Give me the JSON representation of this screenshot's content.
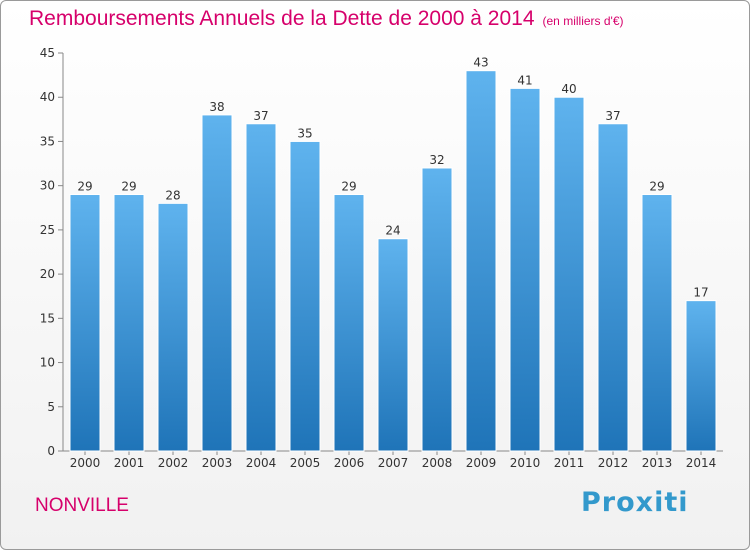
{
  "chart_data": {
    "type": "bar",
    "title": "Remboursements Annuels de la Dette de 2000 à 2014",
    "subtitle": "(en milliers d'€)",
    "categories": [
      "2000",
      "2001",
      "2002",
      "2003",
      "2004",
      "2005",
      "2006",
      "2007",
      "2008",
      "2009",
      "2010",
      "2011",
      "2012",
      "2013",
      "2014"
    ],
    "values": [
      29,
      29,
      28,
      38,
      37,
      35,
      29,
      24,
      32,
      43,
      41,
      40,
      37,
      29,
      17
    ],
    "ylim": [
      0,
      45
    ],
    "yticks": [
      0,
      5,
      10,
      15,
      20,
      25,
      30,
      35,
      40,
      45
    ],
    "xlabel": "",
    "ylabel": "",
    "grid": false,
    "bar_color": "#3a8fd6"
  },
  "footer": {
    "place": "NONVILLE",
    "brand": "Proxiti"
  }
}
